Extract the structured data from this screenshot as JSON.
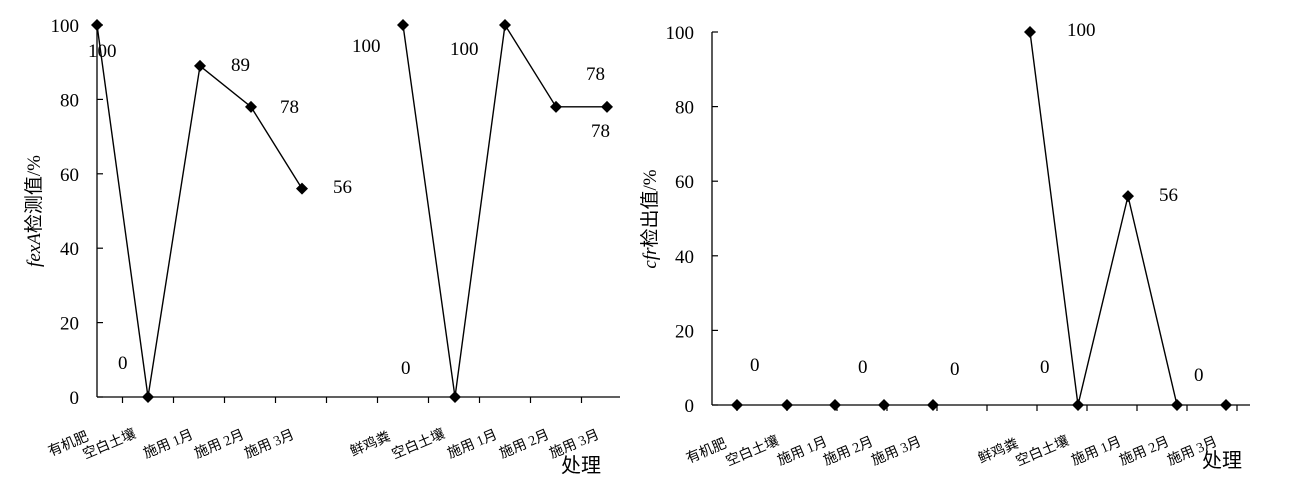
{
  "chart_data": [
    {
      "type": "line",
      "ylabel_italic": "fexA",
      "ylabel_rest": "检测值/%",
      "xlabel": "处理",
      "ylim": [
        0,
        100
      ],
      "yticks": [
        0,
        20,
        40,
        60,
        80,
        100
      ],
      "categories": [
        "有机肥",
        "空白土壤",
        "施用 1月",
        "施用 2月",
        "施用 3月",
        "",
        "鲜鸡粪",
        "空白土壤",
        "施用 1月",
        "施用 2月",
        "施用 3月"
      ],
      "series": [
        {
          "segments": [
            [
              0,
              1,
              2,
              3,
              4
            ],
            [
              6,
              7,
              8,
              9,
              10
            ]
          ],
          "values": [
            100,
            0,
            89,
            78,
            56,
            null,
            100,
            0,
            100,
            78,
            78
          ]
        }
      ],
      "data_labels": [
        "100",
        "0",
        "89",
        "78",
        "56",
        "100",
        "0",
        "100",
        "78",
        "78"
      ]
    },
    {
      "type": "line",
      "ylabel_italic": "cfr",
      "ylabel_rest": "检出值/%",
      "xlabel": "处理",
      "ylim": [
        0,
        100
      ],
      "yticks": [
        0,
        20,
        40,
        60,
        80,
        100
      ],
      "categories": [
        "有机肥",
        "空白土壤",
        "施用 1月",
        "施用 2月",
        "施用 3月",
        "",
        "鲜鸡粪",
        "空白土壤",
        "施用 1月",
        "施用 2月",
        "施用 3月"
      ],
      "series": [
        {
          "segments": [
            [
              0
            ],
            [
              1
            ],
            [
              2
            ],
            [
              3
            ],
            [
              4
            ],
            [
              6,
              7,
              8,
              9
            ],
            [
              10
            ]
          ],
          "values": [
            0,
            0,
            0,
            0,
            0,
            null,
            100,
            0,
            56,
            0,
            0
          ]
        }
      ],
      "data_labels": [
        "0",
        "0",
        "0",
        "100",
        "0",
        "56",
        "0"
      ]
    }
  ]
}
